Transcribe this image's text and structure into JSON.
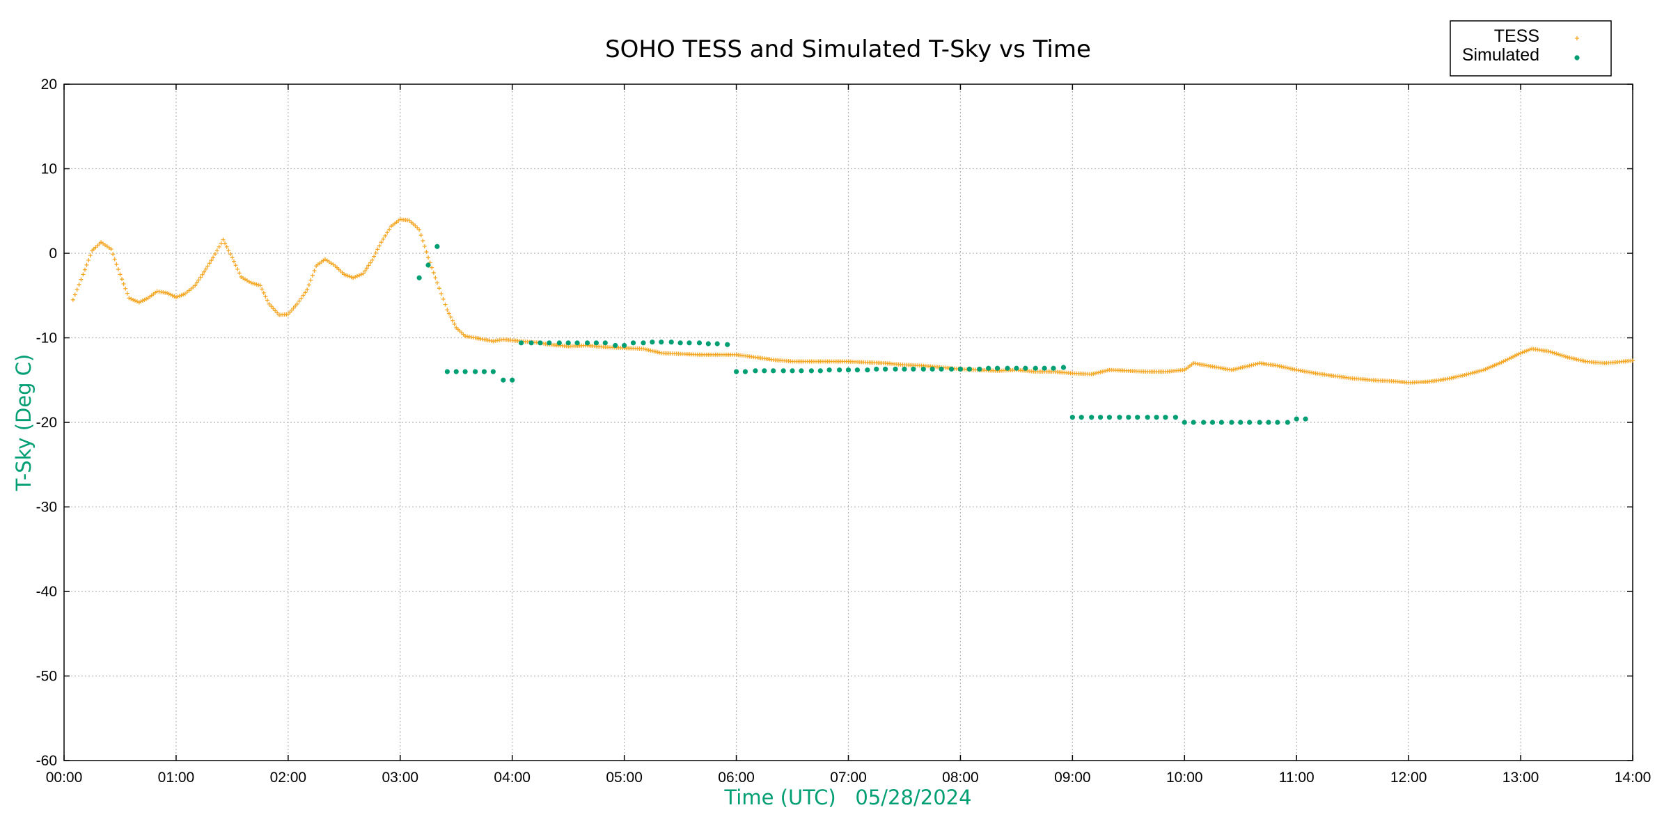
{
  "chart_data": {
    "type": "scatter",
    "title": "SOHO TESS and Simulated T-Sky vs Time",
    "xlabel": "Time (UTC)   05/28/2024",
    "ylabel": "T-Sky (Deg C)",
    "xlim": [
      0,
      14
    ],
    "ylim": [
      -60,
      20
    ],
    "grid": true,
    "legend_position": "top-right",
    "axis_label_color": "#009e73",
    "x_ticks": [
      "00:00",
      "01:00",
      "02:00",
      "03:00",
      "04:00",
      "05:00",
      "06:00",
      "07:00",
      "08:00",
      "09:00",
      "10:00",
      "11:00",
      "12:00",
      "13:00",
      "14:00"
    ],
    "y_ticks": [
      "20",
      "10",
      "0",
      "-10",
      "-20",
      "-30",
      "-40",
      "-50",
      "-60"
    ],
    "series": [
      {
        "name": "TESS",
        "color": "#f5a623",
        "marker": "plus",
        "x": [
          0.08,
          0.17,
          0.25,
          0.33,
          0.42,
          0.5,
          0.58,
          0.67,
          0.75,
          0.83,
          0.92,
          1.0,
          1.08,
          1.17,
          1.25,
          1.33,
          1.42,
          1.5,
          1.58,
          1.67,
          1.75,
          1.83,
          1.92,
          2.0,
          2.08,
          2.17,
          2.25,
          2.33,
          2.42,
          2.5,
          2.58,
          2.67,
          2.75,
          2.83,
          2.92,
          3.0,
          3.08,
          3.17,
          3.25,
          3.33,
          3.42,
          3.5,
          3.58,
          3.67,
          3.75,
          3.83,
          3.92,
          4.0,
          4.08,
          4.17,
          4.25,
          4.33,
          4.5,
          4.67,
          4.83,
          5.0,
          5.17,
          5.33,
          5.5,
          5.67,
          5.83,
          6.0,
          6.17,
          6.33,
          6.5,
          6.67,
          6.83,
          7.0,
          7.17,
          7.33,
          7.5,
          7.67,
          7.83,
          8.0,
          8.17,
          8.33,
          8.5,
          8.67,
          8.83,
          9.0,
          9.17,
          9.33,
          9.5,
          9.67,
          9.83,
          10.0,
          10.08,
          10.25,
          10.42,
          10.58,
          10.67,
          10.83,
          11.0,
          11.17,
          11.33,
          11.5,
          11.67,
          11.83,
          12.0,
          12.17,
          12.33,
          12.5,
          12.67,
          12.83,
          13.0,
          13.1,
          13.25,
          13.42,
          13.58,
          13.75,
          14.0
        ],
        "y": [
          -5.5,
          -2.5,
          0.3,
          1.3,
          0.5,
          -2.5,
          -5.3,
          -5.8,
          -5.3,
          -4.5,
          -4.7,
          -5.2,
          -4.8,
          -3.8,
          -2.2,
          -0.5,
          1.6,
          -0.5,
          -2.8,
          -3.5,
          -3.8,
          -6.0,
          -7.3,
          -7.2,
          -6.0,
          -4.3,
          -1.5,
          -0.7,
          -1.5,
          -2.5,
          -2.9,
          -2.4,
          -0.8,
          1.3,
          3.2,
          4.0,
          3.9,
          2.8,
          -0.5,
          -3.5,
          -6.7,
          -8.8,
          -9.8,
          -10.0,
          -10.2,
          -10.4,
          -10.2,
          -10.3,
          -10.4,
          -10.5,
          -10.6,
          -10.8,
          -11.0,
          -10.9,
          -11.1,
          -11.2,
          -11.3,
          -11.8,
          -11.9,
          -12.0,
          -12.0,
          -12.0,
          -12.3,
          -12.6,
          -12.8,
          -12.8,
          -12.8,
          -12.8,
          -12.9,
          -13.0,
          -13.2,
          -13.3,
          -13.5,
          -13.7,
          -13.8,
          -13.9,
          -13.8,
          -14.0,
          -14.0,
          -14.2,
          -14.3,
          -13.8,
          -13.9,
          -14.0,
          -14.0,
          -13.8,
          -13.0,
          -13.4,
          -13.8,
          -13.3,
          -13.0,
          -13.3,
          -13.8,
          -14.2,
          -14.5,
          -14.8,
          -15.0,
          -15.1,
          -15.3,
          -15.2,
          -14.9,
          -14.4,
          -13.8,
          -12.9,
          -11.8,
          -11.3,
          -11.6,
          -12.3,
          -12.8,
          -13.0,
          -12.7
        ]
      },
      {
        "name": "Simulated",
        "color": "#009e73",
        "marker": "dot",
        "x": [
          3.17,
          3.25,
          3.33,
          3.42,
          3.5,
          3.58,
          3.67,
          3.75,
          3.83,
          3.92,
          4.0,
          4.08,
          4.17,
          4.25,
          4.33,
          4.42,
          4.5,
          4.58,
          4.67,
          4.75,
          4.83,
          4.92,
          5.0,
          5.08,
          5.17,
          5.25,
          5.33,
          5.42,
          5.5,
          5.58,
          5.67,
          5.75,
          5.83,
          5.92,
          6.0,
          6.08,
          6.17,
          6.25,
          6.33,
          6.42,
          6.5,
          6.58,
          6.67,
          6.75,
          6.83,
          6.92,
          7.0,
          7.08,
          7.17,
          7.25,
          7.33,
          7.42,
          7.5,
          7.58,
          7.67,
          7.75,
          7.83,
          7.92,
          8.0,
          8.08,
          8.17,
          8.25,
          8.33,
          8.42,
          8.5,
          8.58,
          8.67,
          8.75,
          8.83,
          8.92,
          9.0,
          9.08,
          9.17,
          9.25,
          9.33,
          9.42,
          9.5,
          9.58,
          9.67,
          9.75,
          9.83,
          9.92,
          10.0,
          10.08,
          10.17,
          10.25,
          10.33,
          10.42,
          10.5,
          10.58,
          10.67,
          10.75,
          10.83,
          10.92,
          11.0,
          11.08
        ],
        "y": [
          -2.9,
          -1.4,
          0.8,
          -14.0,
          -14.0,
          -14.0,
          -14.0,
          -14.0,
          -14.0,
          -15.0,
          -15.0,
          -10.6,
          -10.6,
          -10.6,
          -10.6,
          -10.6,
          -10.6,
          -10.6,
          -10.6,
          -10.6,
          -10.6,
          -10.9,
          -10.9,
          -10.6,
          -10.6,
          -10.5,
          -10.5,
          -10.5,
          -10.6,
          -10.6,
          -10.6,
          -10.7,
          -10.7,
          -10.8,
          -14.0,
          -14.0,
          -13.9,
          -13.9,
          -13.9,
          -13.9,
          -13.9,
          -13.9,
          -13.9,
          -13.9,
          -13.8,
          -13.8,
          -13.8,
          -13.8,
          -13.8,
          -13.7,
          -13.7,
          -13.7,
          -13.7,
          -13.7,
          -13.7,
          -13.7,
          -13.7,
          -13.7,
          -13.7,
          -13.7,
          -13.7,
          -13.6,
          -13.6,
          -13.6,
          -13.6,
          -13.6,
          -13.6,
          -13.6,
          -13.6,
          -13.5,
          -19.4,
          -19.4,
          -19.4,
          -19.4,
          -19.4,
          -19.4,
          -19.4,
          -19.4,
          -19.4,
          -19.4,
          -19.4,
          -19.4,
          -20.0,
          -20.0,
          -20.0,
          -20.0,
          -20.0,
          -20.0,
          -20.0,
          -20.0,
          -20.0,
          -20.0,
          -20.0,
          -20.0,
          -19.6,
          -19.6
        ]
      }
    ]
  }
}
